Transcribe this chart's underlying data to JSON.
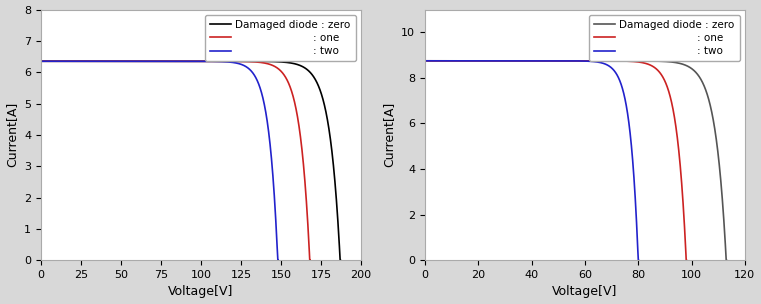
{
  "left": {
    "Isc": 6.35,
    "ylim": [
      0,
      8
    ],
    "xlim": [
      0,
      200
    ],
    "yticks": [
      0,
      1,
      2,
      3,
      4,
      5,
      6,
      7,
      8
    ],
    "xticks": [
      0,
      25,
      50,
      75,
      100,
      125,
      150,
      175,
      200
    ],
    "ylabel": "Current[A]",
    "xlabel": "Voltage[V]",
    "curves": [
      {
        "Voc": 187,
        "Vt": 6.5,
        "color": "#000000",
        "label": "Damaged diode : zero"
      },
      {
        "Voc": 168,
        "Vt": 6.0,
        "color": "#cc2222",
        "label": "                        : one"
      },
      {
        "Voc": 148,
        "Vt": 5.5,
        "color": "#2222cc",
        "label": "                        : two"
      }
    ]
  },
  "right": {
    "Isc": 8.75,
    "ylim": [
      0,
      11
    ],
    "xlim": [
      0,
      120
    ],
    "yticks": [
      0,
      2,
      4,
      6,
      8,
      10
    ],
    "xticks": [
      0,
      20,
      40,
      60,
      80,
      100,
      120
    ],
    "ylabel": "Current[A]",
    "xlabel": "Voltage[V]",
    "curves": [
      {
        "Voc": 113,
        "Vt": 4.0,
        "color": "#555555",
        "label": "Damaged diode : zero"
      },
      {
        "Voc": 98,
        "Vt": 3.5,
        "color": "#cc2222",
        "label": "                        : one"
      },
      {
        "Voc": 80,
        "Vt": 3.0,
        "color": "#2222cc",
        "label": "                        : two"
      }
    ]
  },
  "bg_color": "#ffffff",
  "fig_bg": "#d8d8d8",
  "legend_fontsize": 7.5,
  "axis_fontsize": 9,
  "tick_fontsize": 8,
  "linewidth": 1.2
}
